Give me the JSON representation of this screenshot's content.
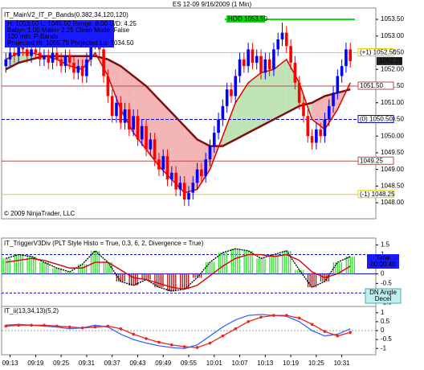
{
  "chart_data": [
    {
      "type": "candlestick",
      "title": "ES 12-09  9/16/2009 (1 Min)",
      "indicator": "IT_MainV2_IT_P_Bands(0.382,34,120,120)",
      "info_box": [
        "H: 1053.50  L: 1045.50  Range: 8.00  U/D: 4.25",
        "Baby= 1.00  Main= 2.25  Clean Mode: False",
        "120 min. P-Bands",
        "Projected Hi: 1055.75  Projected Lo: 1034.50"
      ],
      "note": "© 2009 NinjaTrader, LLC",
      "up_color": "#0000ff",
      "down_color": "#ff0000",
      "xlim": [
        "09:11",
        "10:39"
      ],
      "ylim": [
        1047.52,
        1053.84
      ],
      "yticks": [
        {
          "value": 1048,
          "label": "1048.00"
        },
        {
          "value": 1048.5,
          "label": "1048.50"
        },
        {
          "value": 1049,
          "label": "1049.00"
        },
        {
          "value": 1049.5,
          "label": "1049.50"
        },
        {
          "value": 1050,
          "label": "1050.00"
        },
        {
          "value": 1050.5,
          "label": "1050.50"
        },
        {
          "value": 1051,
          "label": "1051.00"
        },
        {
          "value": 1051.5,
          "label": "1051.50"
        },
        {
          "value": 1052,
          "label": "1052.00"
        },
        {
          "value": 1052.5,
          "label": "1052.50"
        },
        {
          "value": 1053,
          "label": "1053.00"
        },
        {
          "value": 1053.5,
          "label": "1053.50"
        }
      ],
      "x": [
        "09:12",
        "09:13",
        "09:14",
        "09:15",
        "09:16",
        "09:17",
        "09:18",
        "09:19",
        "09:20",
        "09:21",
        "09:22",
        "09:23",
        "09:24",
        "09:25",
        "09:26",
        "09:27",
        "09:28",
        "09:29",
        "09:30",
        "09:31",
        "09:32",
        "09:33",
        "09:34",
        "09:35",
        "09:36",
        "09:37",
        "09:38",
        "09:39",
        "09:40",
        "09:41",
        "09:42",
        "09:43",
        "09:44",
        "09:45",
        "09:46",
        "09:47",
        "09:48",
        "09:49",
        "09:50",
        "09:51",
        "09:52",
        "09:53",
        "09:54",
        "09:55",
        "09:56",
        "09:57",
        "09:58",
        "09:59",
        "10:00",
        "10:01",
        "10:02",
        "10:03",
        "10:04",
        "10:05",
        "10:06",
        "10:07",
        "10:08",
        "10:09",
        "10:10",
        "10:11",
        "10:12",
        "10:13",
        "10:14",
        "10:15",
        "10:16",
        "10:17",
        "10:18",
        "10:19",
        "10:20",
        "10:21",
        "10:22",
        "10:23",
        "10:24",
        "10:25",
        "10:26",
        "10:27",
        "10:28",
        "10:29",
        "10:30",
        "10:31",
        "10:32",
        "10:33"
      ],
      "open": [
        1052.1,
        1052.3,
        1052.5,
        1052.4,
        1052.7,
        1052.6,
        1052.4,
        1052.6,
        1052.5,
        1052.3,
        1052.4,
        1052.2,
        1052.5,
        1052.3,
        1052.1,
        1052.4,
        1052.2,
        1051.9,
        1052.1,
        1051.8,
        1052.3,
        1052.8,
        1053.0,
        1052.6,
        1051.8,
        1051.2,
        1050.6,
        1051.0,
        1050.4,
        1050.8,
        1050.2,
        1050.6,
        1049.9,
        1050.3,
        1049.6,
        1049.9,
        1049.3,
        1049.0,
        1049.4,
        1048.7,
        1048.9,
        1048.4,
        1048.6,
        1048.1,
        1048.3,
        1048.6,
        1049.0,
        1048.8,
        1049.3,
        1049.7,
        1050.1,
        1050.5,
        1050.9,
        1051.4,
        1051.2,
        1051.8,
        1052.3,
        1052.1,
        1052.6,
        1052.2,
        1052.4,
        1051.9,
        1052.3,
        1052.0,
        1052.6,
        1052.9,
        1053.1,
        1052.7,
        1052.2,
        1051.6,
        1051.0,
        1050.6,
        1050.0,
        1049.8,
        1050.2,
        1050.0,
        1050.5,
        1050.9,
        1051.3,
        1051.8,
        1052.1,
        1052.6
      ],
      "high": [
        1052.5,
        1052.7,
        1052.7,
        1052.9,
        1052.9,
        1052.8,
        1052.8,
        1052.8,
        1052.7,
        1052.6,
        1052.6,
        1052.7,
        1052.7,
        1052.5,
        1052.6,
        1052.6,
        1052.4,
        1052.3,
        1052.3,
        1052.5,
        1053.0,
        1053.3,
        1053.2,
        1052.8,
        1052.0,
        1051.4,
        1051.2,
        1051.2,
        1051.0,
        1051.0,
        1050.8,
        1050.8,
        1050.5,
        1050.5,
        1050.1,
        1050.1,
        1049.5,
        1049.6,
        1049.6,
        1049.1,
        1049.1,
        1048.8,
        1048.8,
        1048.5,
        1048.8,
        1049.2,
        1049.2,
        1049.5,
        1049.9,
        1050.3,
        1050.7,
        1051.1,
        1051.6,
        1051.6,
        1052.0,
        1052.5,
        1052.5,
        1052.8,
        1052.8,
        1052.6,
        1052.6,
        1052.5,
        1052.5,
        1052.8,
        1053.1,
        1053.4,
        1053.3,
        1052.9,
        1052.4,
        1051.8,
        1051.2,
        1050.8,
        1050.2,
        1050.4,
        1050.4,
        1050.7,
        1051.1,
        1051.5,
        1052.0,
        1052.3,
        1052.8,
        1052.8
      ],
      "low": [
        1051.9,
        1052.1,
        1052.2,
        1052.2,
        1052.4,
        1052.2,
        1052.2,
        1052.3,
        1052.1,
        1052.1,
        1052.0,
        1052.0,
        1052.1,
        1051.9,
        1051.9,
        1052.0,
        1051.7,
        1051.7,
        1051.6,
        1051.6,
        1052.1,
        1052.6,
        1052.4,
        1051.6,
        1051.0,
        1050.4,
        1050.4,
        1050.2,
        1050.2,
        1050.0,
        1050.0,
        1049.7,
        1049.7,
        1049.4,
        1049.4,
        1049.1,
        1048.8,
        1048.8,
        1048.5,
        1048.5,
        1048.2,
        1048.2,
        1047.9,
        1047.9,
        1048.1,
        1048.4,
        1048.6,
        1048.6,
        1049.1,
        1049.5,
        1049.9,
        1050.3,
        1050.7,
        1051.0,
        1051.0,
        1051.6,
        1051.9,
        1051.9,
        1052.0,
        1052.0,
        1051.7,
        1051.7,
        1051.8,
        1051.8,
        1052.4,
        1052.7,
        1052.5,
        1052.0,
        1051.4,
        1050.8,
        1050.4,
        1049.8,
        1049.6,
        1049.6,
        1049.8,
        1049.8,
        1050.3,
        1050.7,
        1051.1,
        1051.6,
        1051.9,
        1052.05
      ],
      "close": [
        1052.3,
        1052.5,
        1052.4,
        1052.7,
        1052.6,
        1052.4,
        1052.6,
        1052.5,
        1052.3,
        1052.4,
        1052.2,
        1052.5,
        1052.3,
        1052.1,
        1052.4,
        1052.2,
        1051.9,
        1052.1,
        1051.8,
        1052.3,
        1052.8,
        1053.0,
        1052.6,
        1051.8,
        1051.2,
        1050.6,
        1051.0,
        1050.4,
        1050.8,
        1050.2,
        1050.6,
        1049.9,
        1050.3,
        1049.6,
        1049.9,
        1049.3,
        1049.0,
        1049.4,
        1048.7,
        1048.9,
        1048.4,
        1048.6,
        1048.1,
        1048.3,
        1048.6,
        1049.0,
        1048.8,
        1049.3,
        1049.7,
        1050.1,
        1050.5,
        1050.9,
        1051.4,
        1051.2,
        1051.8,
        1052.3,
        1052.1,
        1052.6,
        1052.2,
        1052.4,
        1051.9,
        1052.3,
        1052.0,
        1052.6,
        1052.9,
        1053.1,
        1052.7,
        1052.2,
        1051.6,
        1051.0,
        1050.6,
        1050.0,
        1049.8,
        1050.2,
        1050.0,
        1050.5,
        1050.9,
        1051.3,
        1051.8,
        1052.1,
        1052.6,
        1052.25
      ],
      "bands": {
        "x": [
          "09:12",
          "09:15",
          "09:18",
          "09:21",
          "09:24",
          "09:27",
          "09:30",
          "09:33",
          "09:36",
          "09:39",
          "09:42",
          "09:45",
          "09:48",
          "09:51",
          "09:54",
          "09:57",
          "10:00",
          "10:03",
          "10:06",
          "10:09",
          "10:12",
          "10:15",
          "10:18",
          "10:21",
          "10:24",
          "10:27",
          "10:30",
          "10:33"
        ],
        "fast": [
          1052.3,
          1052.5,
          1052.5,
          1052.4,
          1052.3,
          1052.1,
          1052.0,
          1052.5,
          1051.8,
          1050.8,
          1050.1,
          1049.6,
          1049.1,
          1048.7,
          1048.3,
          1048.4,
          1049.0,
          1050.0,
          1051.0,
          1051.6,
          1051.9,
          1052.0,
          1052.3,
          1051.6,
          1050.5,
          1050.2,
          1050.8,
          1051.6
        ],
        "slow": [
          1052.0,
          1052.2,
          1052.3,
          1052.4,
          1052.4,
          1052.4,
          1052.4,
          1052.4,
          1052.3,
          1052.1,
          1051.8,
          1051.5,
          1051.1,
          1050.7,
          1050.3,
          1049.9,
          1049.7,
          1049.7,
          1049.9,
          1050.1,
          1050.3,
          1050.5,
          1050.7,
          1050.9,
          1051.0,
          1051.2,
          1051.3,
          1051.4
        ],
        "fast_color": "#e00000",
        "slow_color": "#7a1010",
        "up_fill": "#bfe3b4",
        "down_fill": "#f2b4b4"
      },
      "levels": [
        {
          "label": "HOD 1053.50",
          "value": 1053.5,
          "color": "#00dd00"
        },
        {
          "label": "(+1) 1052.50",
          "value": 1052.5,
          "color": "#e8d000"
        },
        {
          "label": "1051.50",
          "value": 1051.5,
          "color": "#b05050"
        },
        {
          "label": "(0) 1050.50",
          "value": 1050.5,
          "color": "#0000cc"
        },
        {
          "label": "1049.25",
          "value": 1049.25,
          "color": "#b05050"
        },
        {
          "label": "(-1) 1048.25",
          "value": 1048.25,
          "color": "#e8d000"
        }
      ],
      "last_price": {
        "value": 1052.25,
        "label": "1052.25"
      }
    },
    {
      "type": "histo",
      "title": "IT_TriggerV3Div (PLT Style Histo = True, 0.3, 6, 2, Divergence = True)",
      "time_box": [
        "Time",
        "00:00:40"
      ],
      "status_box": [
        "DN Angle",
        "Decel"
      ],
      "xlim": [
        "09:11",
        "10:39"
      ],
      "ylim": [
        -1.7,
        1.86
      ],
      "yticks": [
        1.5,
        1,
        0.5,
        0,
        -0.5,
        -1,
        -1.5
      ],
      "ref_lines": [
        1,
        -1
      ],
      "x": [
        "09:12",
        "09:15",
        "09:18",
        "09:21",
        "09:24",
        "09:27",
        "09:30",
        "09:33",
        "09:36",
        "09:39",
        "09:42",
        "09:45",
        "09:48",
        "09:51",
        "09:54",
        "09:57",
        "10:00",
        "10:03",
        "10:06",
        "10:09",
        "10:12",
        "10:15",
        "10:18",
        "10:21",
        "10:24",
        "10:27",
        "10:30",
        "10:33"
      ],
      "values": [
        0.8,
        1.0,
        0.9,
        0.6,
        0.3,
        0.1,
        0.5,
        1.2,
        0.6,
        -0.4,
        -0.6,
        -0.3,
        -0.7,
        -0.9,
        -0.8,
        -0.2,
        0.6,
        1.1,
        1.3,
        1.2,
        0.8,
        1.0,
        1.2,
        0.2,
        -0.7,
        -0.4,
        0.6,
        0.9
      ],
      "signal": [
        0.6,
        0.7,
        0.8,
        0.7,
        0.5,
        0.3,
        0.3,
        0.6,
        0.6,
        0.2,
        -0.2,
        -0.3,
        -0.5,
        -0.7,
        -0.8,
        -0.6,
        -0.1,
        0.4,
        0.8,
        1.0,
        1.0,
        0.9,
        1.0,
        0.7,
        0.1,
        -0.2,
        0.0,
        0.4
      ],
      "pos_color": "#33dd33",
      "neg_color": "#aa1111",
      "signal_color": "#dd0000"
    },
    {
      "type": "line",
      "title": "IT_ii(13,34,13)(5,2)",
      "xlim": [
        "09:11",
        "10:39"
      ],
      "ylim": [
        -1.35,
        1.35
      ],
      "yticks": [
        1,
        0.5,
        0,
        -0.5,
        -1
      ],
      "xticks": [
        "09:13",
        "09:19",
        "09:25",
        "09:31",
        "09:37",
        "09:43",
        "09:49",
        "09:55",
        "10:01",
        "10:07",
        "10:13",
        "10:19",
        "10:25",
        "10:31"
      ],
      "x": [
        "09:12",
        "09:15",
        "09:18",
        "09:21",
        "09:24",
        "09:27",
        "09:30",
        "09:33",
        "09:36",
        "09:39",
        "09:42",
        "09:45",
        "09:48",
        "09:51",
        "09:54",
        "09:57",
        "10:00",
        "10:03",
        "10:06",
        "10:09",
        "10:12",
        "10:15",
        "10:18",
        "10:21",
        "10:24",
        "10:27",
        "10:30",
        "10:33"
      ],
      "series": [
        {
          "color": "#3366ff",
          "values": [
            0.3,
            0.35,
            0.3,
            0.25,
            0.2,
            0.1,
            0.15,
            0.3,
            0.2,
            -0.2,
            -0.5,
            -0.7,
            -0.85,
            -0.95,
            -1.0,
            -0.8,
            -0.3,
            0.2,
            0.6,
            0.85,
            0.9,
            0.85,
            0.8,
            0.5,
            0.0,
            -0.3,
            -0.2,
            0.1
          ]
        },
        {
          "color": "#ee2222",
          "markers": true,
          "values": [
            0.25,
            0.3,
            0.3,
            0.3,
            0.25,
            0.2,
            0.15,
            0.2,
            0.25,
            0.1,
            -0.2,
            -0.45,
            -0.65,
            -0.8,
            -0.9,
            -0.95,
            -0.7,
            -0.3,
            0.1,
            0.5,
            0.75,
            0.85,
            0.85,
            0.7,
            0.35,
            -0.05,
            -0.3,
            -0.1
          ]
        }
      ]
    }
  ]
}
